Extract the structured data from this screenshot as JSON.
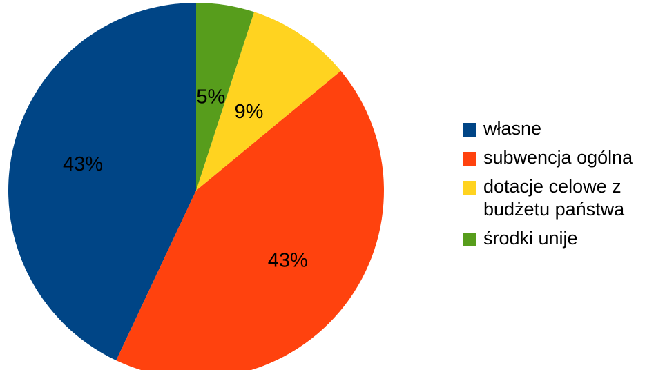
{
  "chart_data": {
    "type": "pie",
    "categories": [
      "własne",
      "subwencja ogólna",
      "dotacje celowe z budżetu państwa",
      "środki unije"
    ],
    "values": [
      43,
      43,
      9,
      5
    ],
    "value_labels": [
      "43%",
      "43%",
      "9%",
      "5%"
    ],
    "colors": [
      "#004586",
      "#ff420e",
      "#ffd320",
      "#579d1c"
    ],
    "start_angle_deg": 0,
    "direction": "counterclockwise",
    "legend_placement": "right"
  },
  "legend": {
    "items": [
      {
        "label_lines": [
          "własne"
        ],
        "color": "#004586"
      },
      {
        "label_lines": [
          "subwencja ogólna"
        ],
        "color": "#ff420e"
      },
      {
        "label_lines": [
          "dotacje celowe z",
          "budżetu państwa"
        ],
        "color": "#ffd320"
      },
      {
        "label_lines": [
          "środki unije"
        ],
        "color": "#579d1c"
      }
    ]
  }
}
